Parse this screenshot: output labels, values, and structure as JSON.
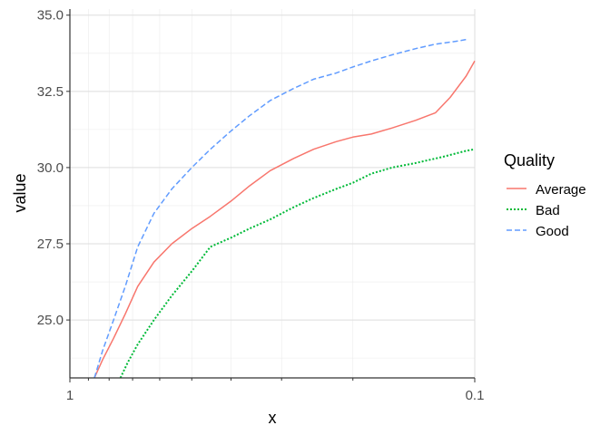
{
  "chart_data": {
    "type": "line",
    "xlabel": "x",
    "ylabel": "value",
    "x_scale": "log-reversed",
    "xlim": [
      1,
      0.1
    ],
    "ylim": [
      23.1,
      35.2
    ],
    "x_ticks": [
      {
        "value": 1,
        "label": "1"
      },
      {
        "value": 0.1,
        "label": "0.1"
      }
    ],
    "y_ticks": [
      {
        "value": 25.0,
        "label": "25.0"
      },
      {
        "value": 27.5,
        "label": "27.5"
      },
      {
        "value": 30.0,
        "label": "30.0"
      },
      {
        "value": 32.5,
        "label": "32.5"
      },
      {
        "value": 35.0,
        "label": "35.0"
      }
    ],
    "grid": true,
    "legend": {
      "title": "Quality",
      "position": "right"
    },
    "series": [
      {
        "name": "Average",
        "color": "#F8766D",
        "dash": "solid",
        "x": [
          0.87,
          0.83,
          0.78,
          0.73,
          0.68,
          0.62,
          0.56,
          0.5,
          0.45,
          0.4,
          0.36,
          0.32,
          0.28,
          0.25,
          0.22,
          0.2,
          0.18,
          0.16,
          0.14,
          0.125,
          0.115,
          0.105,
          0.1
        ],
        "values": [
          23.1,
          23.7,
          24.4,
          25.2,
          26.1,
          26.9,
          27.5,
          28.0,
          28.4,
          28.9,
          29.4,
          29.9,
          30.3,
          30.6,
          30.85,
          31.0,
          31.1,
          31.3,
          31.55,
          31.8,
          32.3,
          33.0,
          33.5
        ]
      },
      {
        "name": "Bad",
        "color": "#00BA38",
        "dash": "dotted",
        "x": [
          0.75,
          0.72,
          0.68,
          0.62,
          0.56,
          0.5,
          0.45,
          0.4,
          0.36,
          0.32,
          0.28,
          0.25,
          0.22,
          0.2,
          0.18,
          0.16,
          0.14,
          0.12,
          0.105,
          0.1
        ],
        "values": [
          23.1,
          23.6,
          24.2,
          25.0,
          25.8,
          26.6,
          27.4,
          27.7,
          28.0,
          28.3,
          28.7,
          29.0,
          29.3,
          29.5,
          29.8,
          30.0,
          30.15,
          30.35,
          30.55,
          30.6
        ]
      },
      {
        "name": "Good",
        "color": "#619CFF",
        "dash": "dashed",
        "x": [
          0.87,
          0.83,
          0.78,
          0.73,
          0.68,
          0.62,
          0.56,
          0.5,
          0.45,
          0.4,
          0.36,
          0.32,
          0.28,
          0.25,
          0.22,
          0.2,
          0.18,
          0.16,
          0.14,
          0.125,
          0.11,
          0.105
        ],
        "values": [
          23.1,
          24.0,
          25.0,
          26.1,
          27.4,
          28.5,
          29.3,
          30.0,
          30.6,
          31.2,
          31.7,
          32.2,
          32.6,
          32.9,
          33.1,
          33.3,
          33.5,
          33.7,
          33.9,
          34.05,
          34.15,
          34.2
        ]
      }
    ]
  }
}
